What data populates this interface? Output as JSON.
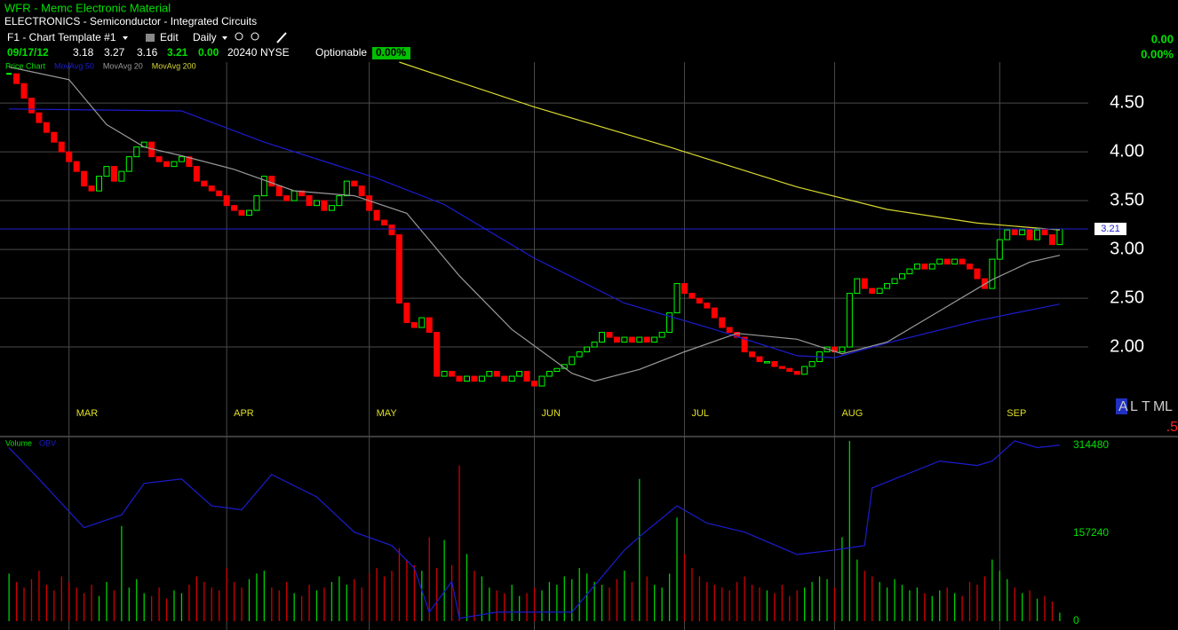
{
  "header": {
    "title": "WFR - Memc Electronic Material",
    "subtitle": "ELECTRONICS - Semiconductor - Integrated Circuits"
  },
  "toolbar": {
    "template": "F1 - Chart Template #1",
    "edit": "Edit",
    "period": "Daily"
  },
  "quote": {
    "date": "09/17/12",
    "open": "3.18",
    "high": "3.27",
    "low": "3.16",
    "last": "3.21",
    "change": "0.00",
    "volume": "20240",
    "exchange": "NYSE",
    "optionable": "Optionable",
    "change_pct": "0.00%",
    "right_change": "0.00",
    "right_change_pct": "0.00%"
  },
  "side_tabs": {
    "letters": [
      "A",
      "L",
      "T",
      "M",
      "L"
    ],
    "fragment": ".5"
  },
  "chart_data": [
    {
      "type": "candlestick",
      "current_label": "3.21",
      "current": 3.21,
      "xlim": [
        -1.2,
        143.8
      ],
      "ylim": [
        1.1,
        4.92
      ],
      "xticks": [
        {
          "value": 8,
          "label": "MAR"
        },
        {
          "value": 29,
          "label": "APR"
        },
        {
          "value": 48,
          "label": "MAY"
        },
        {
          "value": 70,
          "label": "JUN"
        },
        {
          "value": 90,
          "label": "JUL"
        },
        {
          "value": 110,
          "label": "AUG"
        },
        {
          "value": 132,
          "label": "SEP"
        }
      ],
      "yticks": [
        {
          "value": 4.5,
          "label": "4.50"
        },
        {
          "value": 4,
          "label": "4.00"
        },
        {
          "value": 3.5,
          "label": "3.50"
        },
        {
          "value": 3,
          "label": "3.00"
        },
        {
          "value": 2.5,
          "label": "2.50"
        },
        {
          "value": 2,
          "label": "2.00"
        }
      ],
      "grid": true,
      "series": [
        {
          "name": "Price Chart",
          "color": "#00ff00",
          "down_color": "#ff0000",
          "values": [
            4.8,
            4.7,
            4.55,
            4.4,
            4.3,
            4.2,
            4.1,
            4.0,
            3.9,
            3.8,
            3.65,
            3.6,
            3.75,
            3.85,
            3.7,
            3.8,
            3.95,
            4.05,
            4.1,
            3.95,
            3.9,
            3.85,
            3.9,
            3.95,
            3.85,
            3.7,
            3.65,
            3.6,
            3.55,
            3.45,
            3.4,
            3.35,
            3.4,
            3.55,
            3.75,
            3.65,
            3.55,
            3.5,
            3.6,
            3.55,
            3.45,
            3.5,
            3.4,
            3.45,
            3.55,
            3.7,
            3.65,
            3.55,
            3.4,
            3.3,
            3.25,
            3.15,
            2.45,
            2.25,
            2.2,
            2.3,
            2.15,
            1.7,
            1.75,
            1.7,
            1.65,
            1.7,
            1.65,
            1.7,
            1.75,
            1.7,
            1.65,
            1.7,
            1.75,
            1.65,
            1.6,
            1.7,
            1.75,
            1.78,
            1.82,
            1.9,
            1.95,
            2.0,
            2.05,
            2.15,
            2.1,
            2.05,
            2.1,
            2.05,
            2.1,
            2.05,
            2.1,
            2.15,
            2.35,
            2.65,
            2.55,
            2.5,
            2.45,
            2.4,
            2.3,
            2.2,
            2.15,
            2.1,
            1.95,
            1.9,
            1.85,
            1.85,
            1.8,
            1.78,
            1.75,
            1.72,
            1.8,
            1.85,
            1.95,
            2.0,
            1.95,
            2.0,
            2.55,
            2.7,
            2.6,
            2.55,
            2.6,
            2.65,
            2.7,
            2.75,
            2.8,
            2.85,
            2.8,
            2.85,
            2.9,
            2.85,
            2.9,
            2.85,
            2.8,
            2.7,
            2.6,
            2.9,
            3.1,
            3.2,
            3.15,
            3.2,
            3.1,
            3.2,
            3.15,
            3.05,
            3.21
          ]
        },
        {
          "name": "MovAvg 50",
          "color": "#1c1cd0",
          "x": [
            0,
            23,
            34,
            49,
            58,
            70,
            82,
            94,
            105,
            110,
            117,
            129,
            140
          ],
          "values": [
            4.44,
            4.42,
            4.1,
            3.73,
            3.46,
            2.91,
            2.45,
            2.18,
            1.91,
            1.89,
            2.04,
            2.27,
            2.44
          ]
        },
        {
          "name": "MovAvg 20",
          "color": "#9a9a9a",
          "x": [
            0,
            8,
            13,
            18,
            23,
            30,
            38,
            46,
            53,
            60,
            67,
            75,
            78,
            84,
            90,
            97,
            105,
            111,
            117,
            124,
            131,
            136,
            140
          ],
          "values": [
            4.87,
            4.74,
            4.28,
            4.05,
            3.96,
            3.82,
            3.6,
            3.55,
            3.37,
            2.73,
            2.18,
            1.73,
            1.65,
            1.77,
            1.95,
            2.14,
            2.08,
            1.93,
            2.05,
            2.37,
            2.69,
            2.87,
            2.94
          ]
        },
        {
          "name": "MovAvg 200",
          "color": "#d8d830",
          "x": [
            52,
            70,
            88,
            105,
            117,
            129,
            140
          ],
          "values": [
            4.92,
            4.46,
            4.05,
            3.64,
            3.41,
            3.27,
            3.2
          ]
        }
      ]
    },
    {
      "type": "bar",
      "xlim": [
        -1.2,
        143.8
      ],
      "ylim": [
        0,
        325000
      ],
      "yticks": [
        0,
        157240,
        314480
      ],
      "series": [
        {
          "name": "Volume",
          "up_color": "#00d000",
          "down_color": "#d00000",
          "values": [
            85000,
            70000,
            60000,
            75000,
            90000,
            65000,
            55000,
            80000,
            70000,
            60000,
            50000,
            65000,
            45000,
            70000,
            55000,
            170000,
            60000,
            75000,
            50000,
            45000,
            60000,
            40000,
            55000,
            50000,
            65000,
            80000,
            70000,
            60000,
            55000,
            95000,
            70000,
            60000,
            75000,
            85000,
            90000,
            60000,
            55000,
            70000,
            50000,
            45000,
            65000,
            55000,
            60000,
            70000,
            80000,
            65000,
            75000,
            60000,
            85000,
            95000,
            80000,
            90000,
            130000,
            110000,
            100000,
            90000,
            150000,
            95000,
            145000,
            100000,
            278000,
            120000,
            90000,
            80000,
            60000,
            55000,
            50000,
            65000,
            45000,
            50000,
            60000,
            55000,
            70000,
            65000,
            80000,
            75000,
            95000,
            85000,
            70000,
            65000,
            60000,
            75000,
            90000,
            70000,
            254000,
            80000,
            65000,
            60000,
            85000,
            185000,
            120000,
            95000,
            80000,
            70000,
            65000,
            60000,
            55000,
            70000,
            80000,
            65000,
            60000,
            55000,
            50000,
            65000,
            45000,
            55000,
            60000,
            70000,
            80000,
            75000,
            60000,
            150000,
            322000,
            110000,
            90000,
            80000,
            70000,
            60000,
            75000,
            65000,
            55000,
            60000,
            50000,
            45000,
            55000,
            60000,
            50000,
            45000,
            70000,
            65000,
            80000,
            110000,
            90000,
            75000,
            60000,
            50000,
            55000,
            40000,
            45000,
            35000,
            15000
          ]
        },
        {
          "name": "OBV",
          "color": "#1c1cd0",
          "x": [
            0,
            4,
            10,
            15,
            18,
            23,
            27,
            31,
            35,
            41,
            46,
            51,
            54,
            56,
            59,
            60,
            65,
            70,
            75,
            82,
            84,
            89,
            93,
            98,
            105,
            110,
            114,
            115,
            118,
            124,
            129,
            131,
            134,
            137,
            140
          ],
          "values": [
            310000,
            254000,
            167000,
            190000,
            246000,
            254000,
            206000,
            199000,
            262000,
            222000,
            159000,
            135000,
            95000,
            16000,
            71000,
            5000,
            16000,
            16000,
            16000,
            127000,
            151000,
            206000,
            175000,
            159000,
            119000,
            127000,
            135000,
            238000,
            254000,
            286000,
            278000,
            286000,
            322000,
            310000,
            314480
          ]
        }
      ]
    }
  ]
}
